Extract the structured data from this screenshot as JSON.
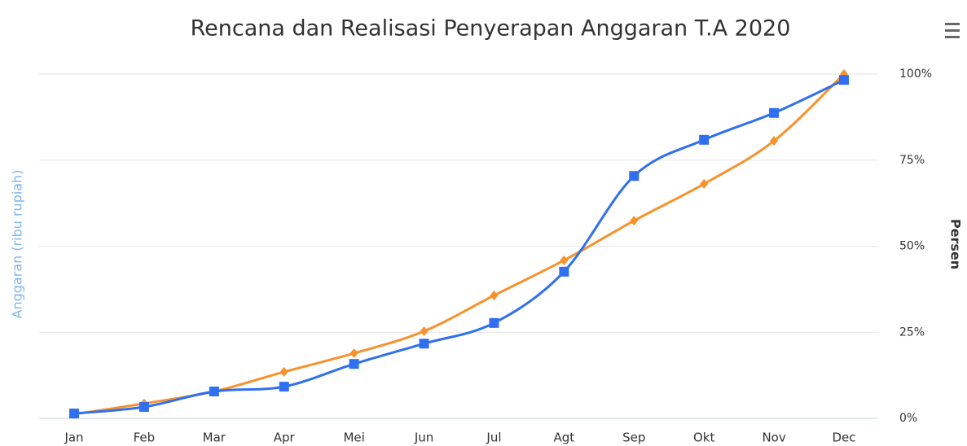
{
  "chart_data": {
    "type": "spline",
    "title": "Rencana dan Realisasi Penyerapan Anggaran T.A 2020",
    "left_axis_label": "Anggaran (ribu rupiah)",
    "right_axis_label": "Persen",
    "categories": [
      "Jan",
      "Feb",
      "Mar",
      "Apr",
      "Mei",
      "Jun",
      "Jul",
      "Agt",
      "Sep",
      "Okt",
      "Nov",
      "Dec"
    ],
    "series": [
      {
        "color": "#f7922d",
        "marker": "diamond",
        "values": [
          1.2,
          4.3,
          7.8,
          13.5,
          18.9,
          25.3,
          35.7,
          45.9,
          57.4,
          68.1,
          80.6,
          100
        ]
      },
      {
        "color": "#2f6ff0",
        "marker": "square",
        "values": [
          1.4,
          3.3,
          7.8,
          9.2,
          15.8,
          21.7,
          27.7,
          42.6,
          70.4,
          80.9,
          88.7,
          98.3
        ]
      }
    ],
    "ylim": [
      0,
      100
    ],
    "yticks": [
      {
        "value": 0,
        "label": "0%"
      },
      {
        "value": 25,
        "label": "25%"
      },
      {
        "value": 50,
        "label": "50%"
      },
      {
        "value": 75,
        "label": "75%"
      },
      {
        "value": 100,
        "label": "100%"
      }
    ],
    "grid": true
  }
}
